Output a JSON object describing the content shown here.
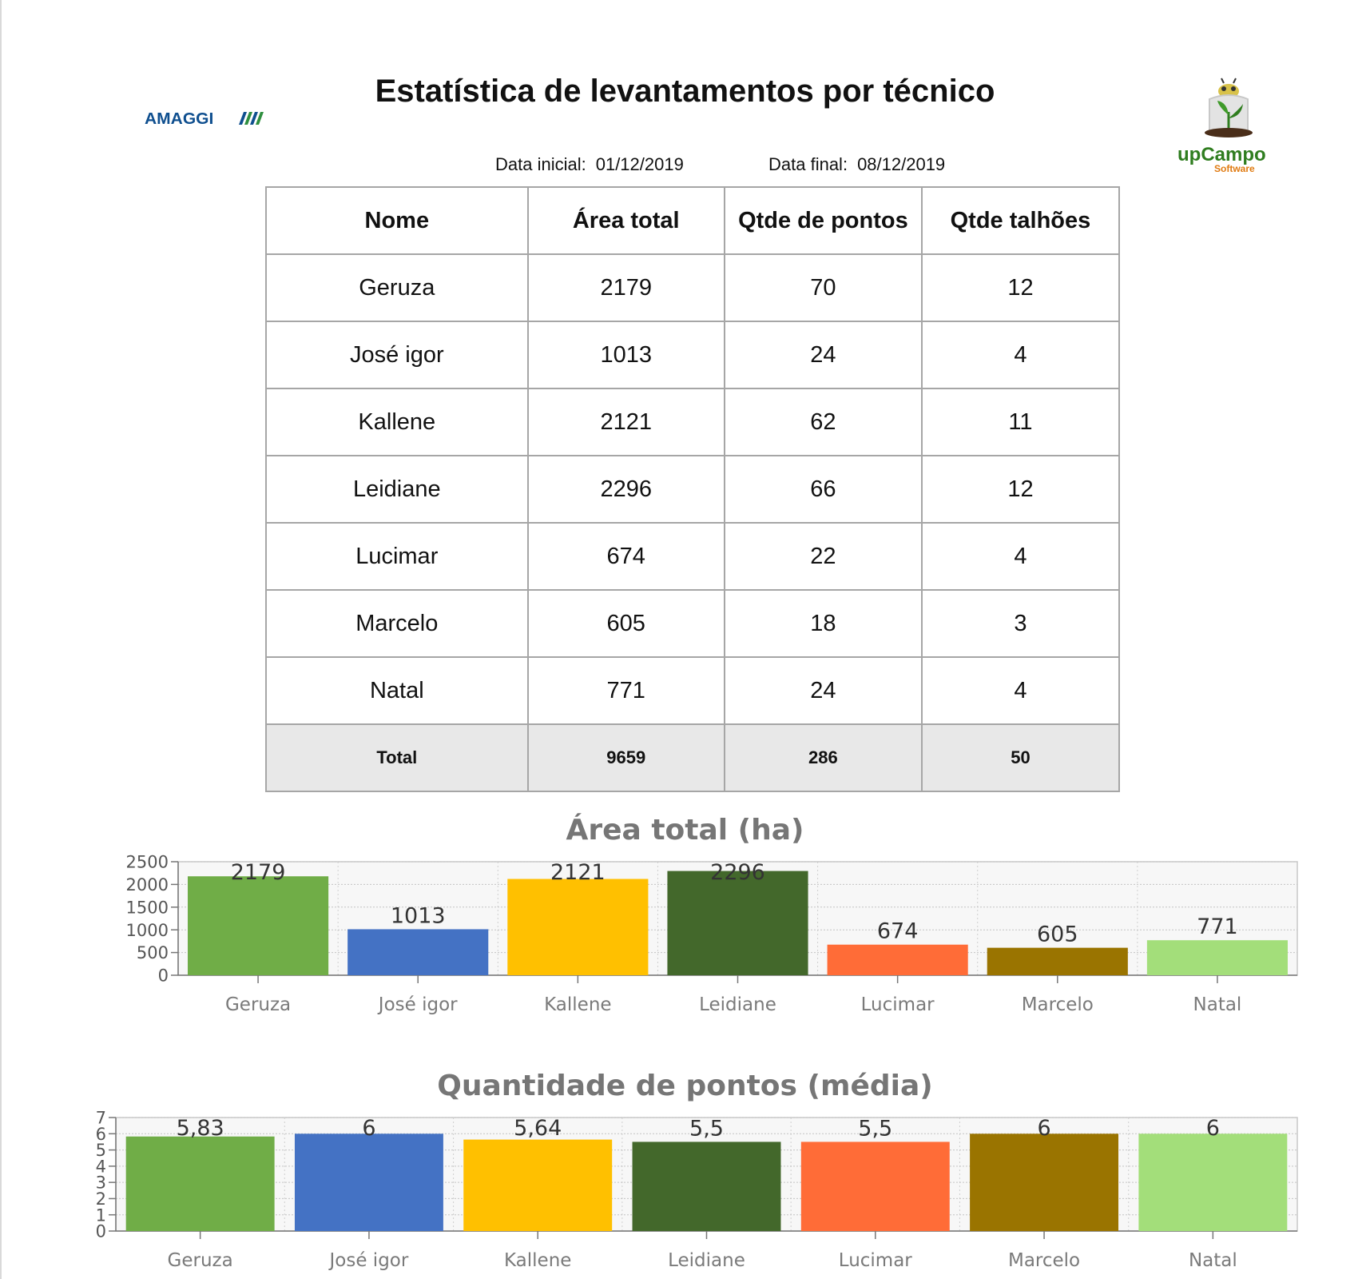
{
  "header": {
    "title": "Estatística de levantamentos por técnico",
    "logo_left": "AMAGGI",
    "logo_right_brand": "upCampo",
    "logo_right_sub": "Software",
    "start_label": "Data inicial:",
    "start_value": "01/12/2019",
    "end_label": "Data final:",
    "end_value": "08/12/2019"
  },
  "table": {
    "headers": [
      "Nome",
      "Área total",
      "Qtde de pontos",
      "Qtde talhões"
    ],
    "rows": [
      [
        "Geruza",
        "2179",
        "70",
        "12"
      ],
      [
        "José igor",
        "1013",
        "24",
        "4"
      ],
      [
        "Kallene",
        "2121",
        "62",
        "11"
      ],
      [
        "Leidiane",
        "2296",
        "66",
        "12"
      ],
      [
        "Lucimar",
        "674",
        "22",
        "4"
      ],
      [
        "Marcelo",
        "605",
        "18",
        "3"
      ],
      [
        "Natal",
        "771",
        "24",
        "4"
      ]
    ],
    "total": [
      "Total",
      "9659",
      "286",
      "50"
    ]
  },
  "colors": [
    "#70ad47",
    "#4472c4",
    "#ffc000",
    "#43682b",
    "#ff6c37",
    "#9a7400",
    "#a3de7a"
  ],
  "chart_data": [
    {
      "type": "bar",
      "title": "Área total (ha)",
      "categories": [
        "Geruza",
        "José igor",
        "Kallene",
        "Leidiane",
        "Lucimar",
        "Marcelo",
        "Natal"
      ],
      "values": [
        2179,
        1013,
        2121,
        2296,
        674,
        605,
        771
      ],
      "labels": [
        "2179",
        "1013",
        "2121",
        "2296",
        "674",
        "605",
        "771"
      ],
      "yticks": [
        "0",
        "500",
        "1000",
        "1500",
        "2000",
        "2500"
      ],
      "ylim": [
        0,
        2500
      ],
      "grid": true,
      "legend": "none"
    },
    {
      "type": "bar",
      "title": "Quantidade de pontos (média)",
      "categories": [
        "Geruza",
        "José igor",
        "Kallene",
        "Leidiane",
        "Lucimar",
        "Marcelo",
        "Natal"
      ],
      "values": [
        5.83,
        6,
        5.64,
        5.5,
        5.5,
        6,
        6
      ],
      "labels": [
        "5,83",
        "6",
        "5,64",
        "5,5",
        "5,5",
        "6",
        "6"
      ],
      "yticks": [
        "0",
        "1",
        "2",
        "3",
        "4",
        "5",
        "6",
        "7"
      ],
      "ylim": [
        0,
        7
      ],
      "grid": true,
      "legend": "none"
    }
  ]
}
